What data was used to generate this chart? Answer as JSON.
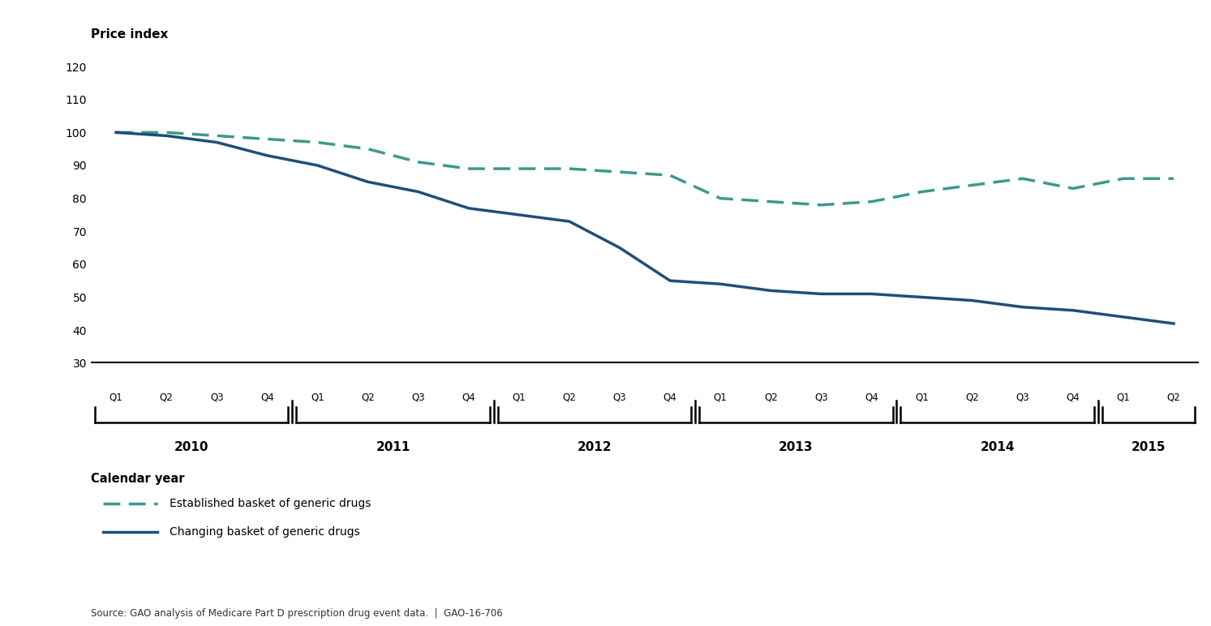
{
  "established_basket": [
    100,
    100,
    99,
    98,
    97,
    95,
    91,
    89,
    89,
    89,
    88,
    87,
    80,
    79,
    78,
    79,
    82,
    84,
    86,
    83,
    86,
    86
  ],
  "changing_basket": [
    100,
    99,
    97,
    93,
    90,
    85,
    82,
    77,
    75,
    73,
    65,
    55,
    54,
    52,
    51,
    51,
    50,
    49,
    47,
    46,
    44,
    42
  ],
  "established_color": "#3a9a8c",
  "changing_color": "#1f4e79",
  "ylim": [
    30,
    125
  ],
  "yticks": [
    30,
    40,
    50,
    60,
    70,
    80,
    90,
    100,
    110,
    120
  ],
  "ylabel": "Price index",
  "xlabel": "Calendar year",
  "quarters": [
    "Q1",
    "Q2",
    "Q3",
    "Q4",
    "Q1",
    "Q2",
    "Q3",
    "Q4",
    "Q1",
    "Q2",
    "Q3",
    "Q4",
    "Q1",
    "Q2",
    "Q3",
    "Q4",
    "Q1",
    "Q2",
    "Q3",
    "Q4",
    "Q1",
    "Q2"
  ],
  "years": [
    "2010",
    "2011",
    "2012",
    "2013",
    "2014",
    "2015"
  ],
  "year_groups": [
    [
      0,
      3,
      "2010"
    ],
    [
      4,
      7,
      "2011"
    ],
    [
      8,
      11,
      "2012"
    ],
    [
      12,
      15,
      "2013"
    ],
    [
      16,
      19,
      "2014"
    ],
    [
      20,
      21,
      "2015"
    ]
  ],
  "separator_positions": [
    3.5,
    7.5,
    11.5,
    15.5,
    19.5
  ],
  "legend_established": "Established basket of generic drugs",
  "legend_changing": "Changing basket of generic drugs",
  "source_text": "Source: GAO analysis of Medicare Part D prescription drug event data.  |  GAO-16-706",
  "background_color": "#ffffff"
}
